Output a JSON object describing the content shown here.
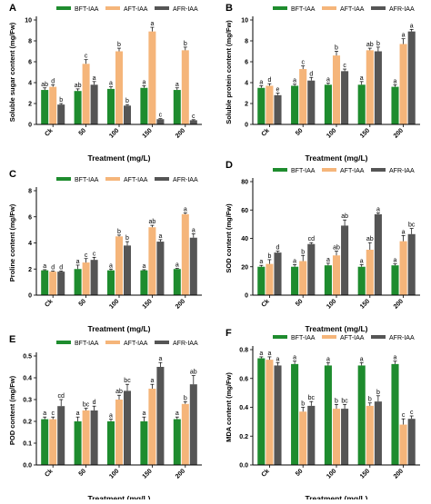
{
  "legend_labels": [
    "BFT-IAA",
    "AFT-IAA",
    "AFR-IAA"
  ],
  "colors": {
    "BFT-IAA": "#1e8c2e",
    "AFT-IAA": "#f5b57a",
    "AFR-IAA": "#555555"
  },
  "chart_data": [
    {
      "panel": "A",
      "type": "bar",
      "categories": [
        "Ck",
        "50",
        "100",
        "150",
        "200"
      ],
      "xlabel": "Treatment (mg/L)",
      "ylabel": "Soluble sugar content (mg/Fw)",
      "ylim": [
        0,
        10
      ],
      "yticks": [
        0,
        2,
        4,
        6,
        8,
        10
      ],
      "series": [
        {
          "name": "BFT-IAA",
          "values": [
            3.3,
            3.2,
            3.4,
            3.5,
            3.3
          ],
          "errors": [
            0.2,
            0.2,
            0.2,
            0.2,
            0.2
          ],
          "letters": [
            "ab",
            "ab",
            "a",
            "a",
            "a"
          ]
        },
        {
          "name": "AFT-IAA",
          "values": [
            3.6,
            5.8,
            7.0,
            8.9,
            7.1
          ],
          "errors": [
            0.2,
            0.4,
            0.3,
            0.4,
            0.3
          ],
          "letters": [
            "d",
            "c",
            "b",
            "a",
            "b"
          ]
        },
        {
          "name": "AFR-IAA",
          "values": [
            1.9,
            3.8,
            1.8,
            0.5,
            0.4
          ],
          "errors": [
            0.1,
            0.3,
            0.1,
            0.05,
            0.05
          ],
          "letters": [
            "b",
            "a",
            "b",
            "c",
            "c"
          ]
        }
      ]
    },
    {
      "panel": "B",
      "type": "bar",
      "categories": [
        "Ck",
        "50",
        "100",
        "150",
        "200"
      ],
      "xlabel": "Treatment (mg/L)",
      "ylabel": "Soluble protein content (mg/Fw)",
      "ylim": [
        0,
        10
      ],
      "yticks": [
        0,
        2,
        4,
        6,
        8,
        10
      ],
      "series": [
        {
          "name": "BFT-IAA",
          "values": [
            3.5,
            3.7,
            3.8,
            3.8,
            3.6
          ],
          "errors": [
            0.2,
            0.15,
            0.15,
            0.3,
            0.2
          ],
          "letters": [
            "a",
            "a",
            "a",
            "a",
            "a"
          ]
        },
        {
          "name": "AFT-IAA",
          "values": [
            3.7,
            5.3,
            6.6,
            7.1,
            7.7
          ],
          "errors": [
            0.2,
            0.3,
            0.4,
            0.2,
            0.5
          ],
          "letters": [
            "d",
            "c",
            "b",
            "ab",
            "a"
          ]
        },
        {
          "name": "AFR-IAA",
          "values": [
            2.8,
            4.2,
            5.1,
            7.0,
            8.9
          ],
          "errors": [
            0.2,
            0.3,
            0.2,
            0.4,
            0.2
          ],
          "letters": [
            "e",
            "d",
            "c",
            "b",
            "a"
          ]
        }
      ]
    },
    {
      "panel": "C",
      "type": "bar",
      "categories": [
        "Ck",
        "50",
        "100",
        "150",
        "200"
      ],
      "xlabel": "Treatment (mg/L)",
      "ylabel": "Proline content (mg/Fw)",
      "ylim": [
        0,
        8
      ],
      "yticks": [
        0,
        2,
        4,
        6,
        8
      ],
      "series": [
        {
          "name": "BFT-IAA",
          "values": [
            1.9,
            2.0,
            1.9,
            1.9,
            2.0
          ],
          "errors": [
            0.05,
            0.3,
            0.1,
            0.05,
            0.05
          ],
          "letters": [
            "a",
            "a",
            "a",
            "a",
            "a"
          ]
        },
        {
          "name": "AFT-IAA",
          "values": [
            1.8,
            2.5,
            4.5,
            5.2,
            6.2
          ],
          "errors": [
            0.05,
            0.3,
            0.1,
            0.15,
            0.1
          ],
          "letters": [
            "d",
            "c",
            "b",
            "ab",
            "a"
          ]
        },
        {
          "name": "AFR-IAA",
          "values": [
            1.8,
            2.7,
            3.8,
            4.1,
            4.4
          ],
          "errors": [
            0.05,
            0.2,
            0.3,
            0.15,
            0.3
          ],
          "letters": [
            "d",
            "c",
            "b",
            "a",
            "a"
          ]
        }
      ]
    },
    {
      "panel": "D",
      "type": "bar",
      "categories": [
        "Ck",
        "50",
        "100",
        "150",
        "200"
      ],
      "xlabel": "Treatment (mg/L)",
      "ylabel": "SOD content (mg/Fw)",
      "ylim": [
        0,
        80
      ],
      "yticks": [
        0,
        20,
        40,
        60,
        80
      ],
      "series": [
        {
          "name": "BFT-IAA",
          "values": [
            20,
            20,
            21,
            20,
            21
          ],
          "errors": [
            1,
            1.5,
            1.5,
            1.5,
            1
          ],
          "letters": [
            "a",
            "a",
            "a",
            "a",
            "a"
          ]
        },
        {
          "name": "AFT-IAA",
          "values": [
            22,
            24,
            28,
            32,
            38
          ],
          "errors": [
            3,
            4,
            3,
            5,
            4
          ],
          "letters": [
            "b",
            "b",
            "ab",
            "ab",
            "a"
          ]
        },
        {
          "name": "AFR-IAA",
          "values": [
            30,
            36,
            49,
            57,
            43
          ],
          "errors": [
            1,
            1,
            4,
            1,
            4
          ],
          "letters": [
            "d",
            "cd",
            "ab",
            "a",
            "bc"
          ]
        }
      ]
    },
    {
      "panel": "E",
      "type": "bar",
      "categories": [
        "Ck",
        "50",
        "100",
        "150",
        "200"
      ],
      "xlabel": "Treatment (mg/L)",
      "ylabel": "POD content (mg/Fw)",
      "ylim": [
        0,
        0.5
      ],
      "yticks": [
        0.0,
        0.1,
        0.2,
        0.3,
        0.4,
        0.5
      ],
      "series": [
        {
          "name": "BFT-IAA",
          "values": [
            0.21,
            0.2,
            0.2,
            0.2,
            0.21
          ],
          "errors": [
            0.01,
            0.02,
            0.01,
            0.02,
            0.01
          ],
          "letters": [
            "a",
            "a",
            "a",
            "a",
            "a"
          ]
        },
        {
          "name": "AFT-IAA",
          "values": [
            0.21,
            0.25,
            0.3,
            0.35,
            0.28
          ],
          "errors": [
            0.01,
            0.01,
            0.02,
            0.02,
            0.01
          ],
          "letters": [
            "c",
            "bc",
            "ab",
            "a",
            "b"
          ]
        },
        {
          "name": "AFR-IAA",
          "values": [
            0.27,
            0.25,
            0.34,
            0.45,
            0.37
          ],
          "errors": [
            0.03,
            0.02,
            0.03,
            0.02,
            0.04
          ],
          "letters": [
            "cd",
            "d",
            "bc",
            "a",
            "ab"
          ]
        }
      ]
    },
    {
      "panel": "F",
      "type": "bar",
      "categories": [
        "Ck",
        "50",
        "100",
        "150",
        "200"
      ],
      "xlabel": "Treatment (mg/L)",
      "ylabel": "MDA content (mg/Fw)",
      "ylim": [
        0,
        0.8
      ],
      "yticks": [
        0.0,
        0.2,
        0.4,
        0.6,
        0.8
      ],
      "series": [
        {
          "name": "BFT-IAA",
          "values": [
            0.74,
            0.7,
            0.69,
            0.69,
            0.7
          ],
          "errors": [
            0.01,
            0.02,
            0.02,
            0.02,
            0.02
          ],
          "letters": [
            "a",
            "a",
            "a",
            "a",
            "a"
          ]
        },
        {
          "name": "AFT-IAA",
          "values": [
            0.73,
            0.37,
            0.39,
            0.41,
            0.28
          ],
          "errors": [
            0.02,
            0.03,
            0.03,
            0.02,
            0.04
          ],
          "letters": [
            "a",
            "b",
            "b",
            "b",
            "c"
          ]
        },
        {
          "name": "AFR-IAA",
          "values": [
            0.69,
            0.41,
            0.39,
            0.44,
            0.32
          ],
          "errors": [
            0.02,
            0.03,
            0.03,
            0.04,
            0.02
          ],
          "letters": [
            "a",
            "bc",
            "bc",
            "b",
            "c"
          ]
        }
      ]
    }
  ]
}
